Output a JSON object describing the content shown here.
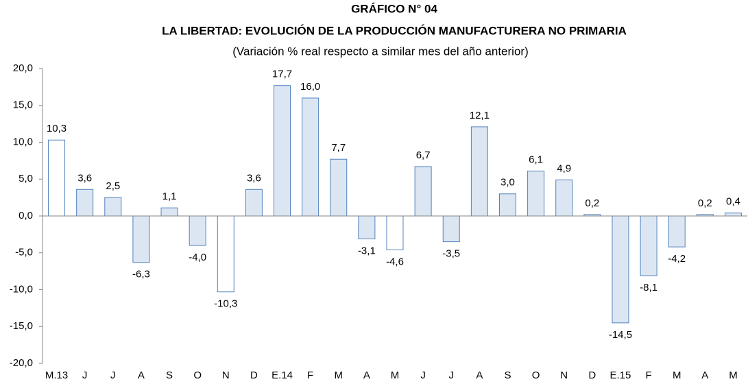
{
  "chart_data": {
    "type": "bar",
    "title": "GRÁFICO N° 04",
    "subtitle": "LA LIBERTAD: EVOLUCIÓN DE LA PRODUCCIÓN MANUFACTURERA NO PRIMARIA",
    "description": "(Variación % real respecto a similar mes del año anterior)",
    "categories": [
      "M.13",
      "J",
      "J",
      "A",
      "S",
      "O",
      "N",
      "D",
      "E.14",
      "F",
      "M",
      "A",
      "M",
      "J",
      "J",
      "A",
      "S",
      "O",
      "N",
      "D",
      "E.15",
      "F",
      "M",
      "A",
      "M"
    ],
    "values": [
      10.3,
      3.6,
      2.5,
      -6.3,
      1.1,
      -4.0,
      -10.3,
      3.6,
      17.7,
      16.0,
      7.7,
      -3.1,
      -4.6,
      6.7,
      -3.5,
      12.1,
      3.0,
      6.1,
      4.9,
      0.2,
      -14.5,
      -8.1,
      -4.2,
      0.2,
      0.4
    ],
    "value_labels": [
      "10,3",
      "3,6",
      "2,5",
      "-6,3",
      "1,1",
      "-4,0",
      "-10,3",
      "3,6",
      "17,7",
      "16,0",
      "7,7",
      "-3,1",
      "-4,6",
      "6,7",
      "-3,5",
      "12,1",
      "3,0",
      "6,1",
      "4,9",
      "0,2",
      "-14,5",
      "-8,1",
      "-4,2",
      "0,2",
      "0,4"
    ],
    "colors": [
      "#ffffff",
      "#dce6f2",
      "#dce6f2",
      "#dce6f2",
      "#dce6f2",
      "#dce6f2",
      "#ffffff",
      "#dce6f2",
      "#dce6f2",
      "#dce6f2",
      "#dce6f2",
      "#dce6f2",
      "#ffffff",
      "#dce6f2",
      "#dce6f2",
      "#dce6f2",
      "#dce6f2",
      "#dce6f2",
      "#dce6f2",
      "#dce6f2",
      "#dce6f2",
      "#dce6f2",
      "#dce6f2",
      "#dce6f2",
      "#dce6f2"
    ],
    "edge_color": "#4f81bd",
    "ylim": [
      -20,
      20
    ],
    "yticks": [
      {
        "value": -20,
        "label": "-20,0"
      },
      {
        "value": -15,
        "label": "-15,0"
      },
      {
        "value": -10,
        "label": "-10,0"
      },
      {
        "value": -5,
        "label": "-5,0"
      },
      {
        "value": 0,
        "label": "0,0"
      },
      {
        "value": 5,
        "label": "5,0"
      },
      {
        "value": 10,
        "label": "10,0"
      },
      {
        "value": 15,
        "label": "15,0"
      },
      {
        "value": 20,
        "label": "20,0"
      }
    ],
    "grid": false
  }
}
